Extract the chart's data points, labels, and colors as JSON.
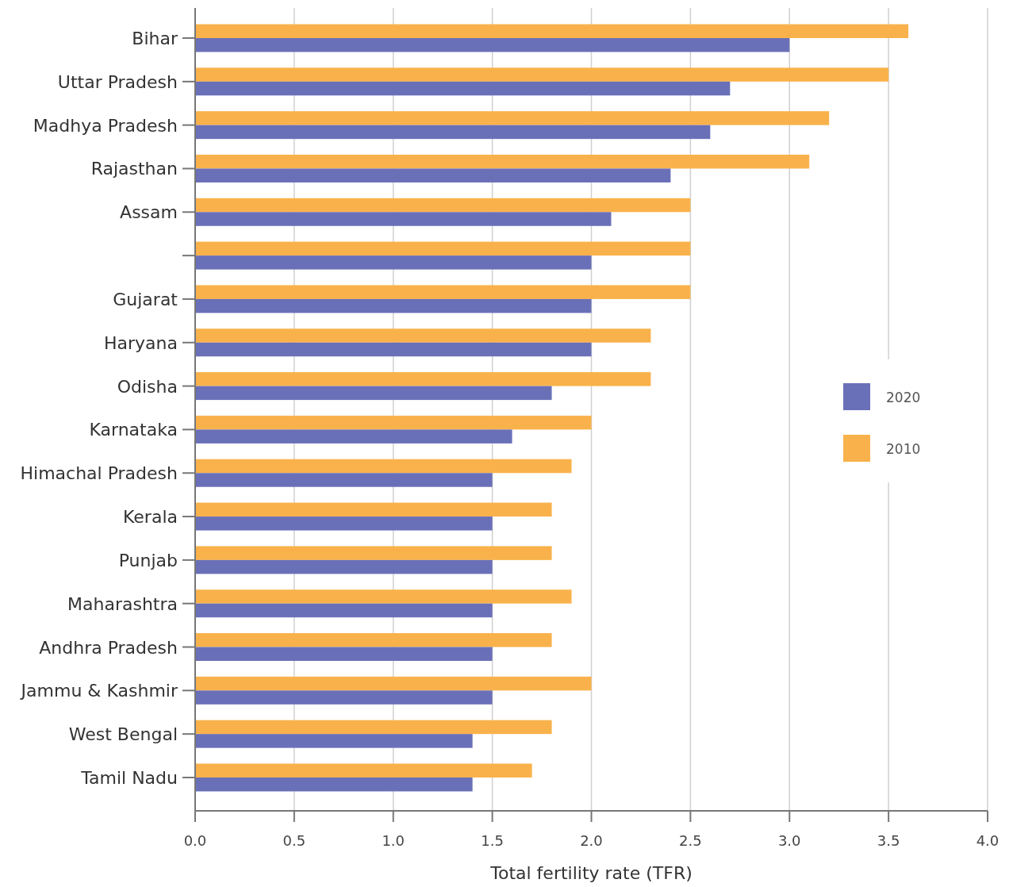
{
  "chart_data": {
    "type": "bar",
    "orientation": "horizontal",
    "xlabel": "Total fertility rate (TFR)",
    "categories": [
      "Bihar",
      "Uttar Pradesh",
      "Madhya Pradesh",
      "Rajasthan",
      "Assam",
      null,
      "Gujarat",
      "Haryana",
      "Odisha",
      "Karnataka",
      "Himachal Pradesh",
      "Kerala",
      "Punjab",
      "Maharashtra",
      "Andhra Pradesh",
      "Jammu & Kashmir",
      "West Bengal",
      "Tamil Nadu"
    ],
    "series": [
      {
        "name": "2010",
        "color": "#f9b24b",
        "values": [
          3.6,
          3.5,
          3.2,
          3.1,
          2.5,
          2.5,
          2.5,
          2.3,
          2.3,
          2.0,
          1.9,
          1.8,
          1.8,
          1.9,
          1.8,
          2.0,
          1.8,
          1.7
        ]
      },
      {
        "name": "2020",
        "color": "#6a70b8",
        "values": [
          3.0,
          2.7,
          2.6,
          2.4,
          2.1,
          2.0,
          2.0,
          2.0,
          1.8,
          1.6,
          1.5,
          1.5,
          1.5,
          1.5,
          1.5,
          1.5,
          1.4,
          1.4
        ]
      }
    ],
    "xlim": [
      0,
      4
    ],
    "xticks": [
      {
        "value": 0,
        "label": "0.0"
      },
      {
        "value": 0.5,
        "label": "0.5"
      },
      {
        "value": 1,
        "label": "1.0"
      },
      {
        "value": 1.5,
        "label": "1.5"
      },
      {
        "value": 2,
        "label": "2.0"
      },
      {
        "value": 2.5,
        "label": "2.5"
      },
      {
        "value": 3,
        "label": "3.0"
      },
      {
        "value": 3.5,
        "label": "3.5"
      },
      {
        "value": 4,
        "label": "4.0"
      }
    ],
    "grid": "x",
    "legend": "right"
  }
}
